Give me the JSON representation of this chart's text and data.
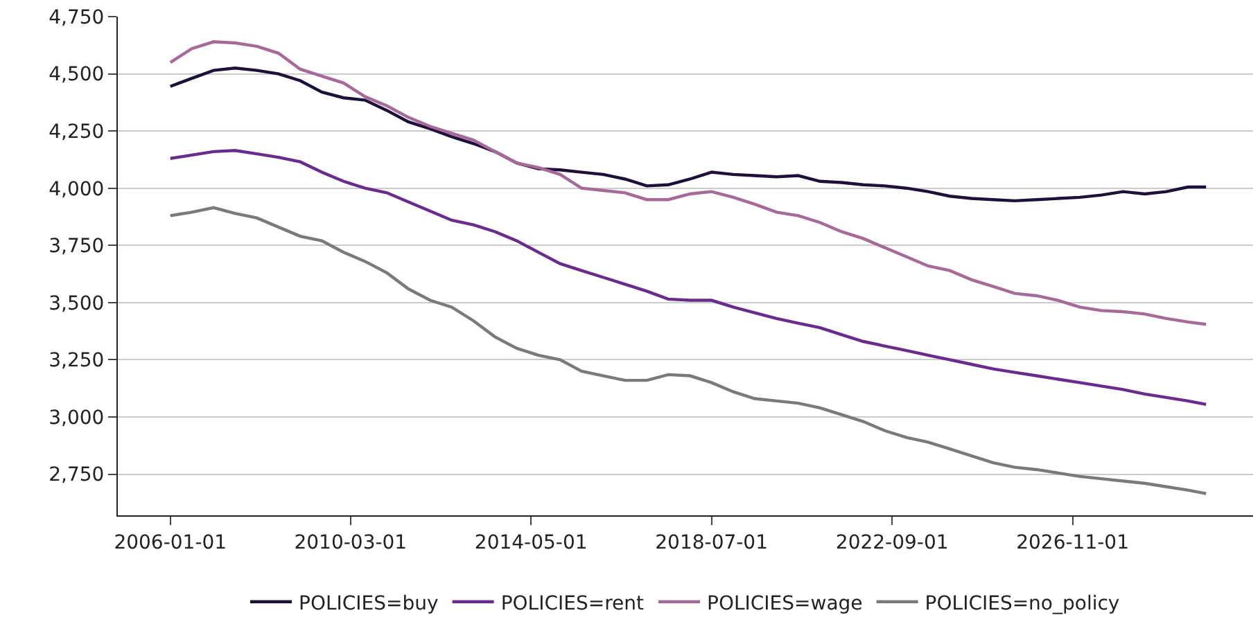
{
  "chart_data": {
    "type": "line",
    "x": [
      "2006-01",
      "2006-07",
      "2007-01",
      "2007-07",
      "2008-01",
      "2008-07",
      "2009-01",
      "2009-07",
      "2010-01",
      "2010-07",
      "2011-01",
      "2011-07",
      "2012-01",
      "2012-07",
      "2013-01",
      "2013-07",
      "2014-01",
      "2014-07",
      "2015-01",
      "2015-07",
      "2016-01",
      "2016-07",
      "2017-01",
      "2017-07",
      "2018-01",
      "2018-07",
      "2019-01",
      "2019-07",
      "2020-01",
      "2020-07",
      "2021-01",
      "2021-07",
      "2022-01",
      "2022-07",
      "2023-01",
      "2023-07",
      "2024-01",
      "2024-07",
      "2025-01",
      "2025-07",
      "2026-01",
      "2026-07",
      "2027-01",
      "2027-07",
      "2028-01",
      "2028-07",
      "2029-01",
      "2029-07",
      "2029-12"
    ],
    "series": [
      {
        "name": "POLICIES=buy",
        "color": "#1f0f3d",
        "values": [
          4445,
          4480,
          4515,
          4525,
          4515,
          4500,
          4470,
          4420,
          4395,
          4385,
          4340,
          4290,
          4260,
          4225,
          4195,
          4160,
          4110,
          4085,
          4080,
          4070,
          4060,
          4040,
          4010,
          4015,
          4040,
          4070,
          4060,
          4055,
          4050,
          4055,
          4030,
          4025,
          4015,
          4010,
          4000,
          3985,
          3965,
          3955,
          3950,
          3945,
          3950,
          3955,
          3960,
          3970,
          3985,
          3975,
          3985,
          4005,
          4005
        ]
      },
      {
        "name": "POLICIES=rent",
        "color": "#6a2a90",
        "values": [
          4130,
          4145,
          4160,
          4165,
          4150,
          4135,
          4115,
          4070,
          4030,
          4000,
          3980,
          3940,
          3900,
          3860,
          3840,
          3810,
          3770,
          3720,
          3670,
          3640,
          3610,
          3580,
          3550,
          3515,
          3510,
          3510,
          3480,
          3455,
          3430,
          3410,
          3390,
          3360,
          3330,
          3310,
          3290,
          3270,
          3250,
          3230,
          3210,
          3195,
          3180,
          3165,
          3150,
          3135,
          3120,
          3100,
          3085,
          3070,
          3055
        ]
      },
      {
        "name": "POLICIES=wage",
        "color": "#a8689a",
        "values": [
          4550,
          4610,
          4640,
          4635,
          4620,
          4590,
          4520,
          4490,
          4460,
          4400,
          4360,
          4310,
          4270,
          4240,
          4210,
          4160,
          4110,
          4090,
          4060,
          4000,
          3990,
          3980,
          3950,
          3950,
          3975,
          3985,
          3960,
          3930,
          3895,
          3880,
          3850,
          3810,
          3780,
          3740,
          3700,
          3660,
          3640,
          3600,
          3570,
          3540,
          3530,
          3510,
          3480,
          3465,
          3460,
          3450,
          3430,
          3415,
          3405
        ]
      },
      {
        "name": "POLICIES=no_policy",
        "color": "#7a7a7a",
        "values": [
          3880,
          3895,
          3915,
          3890,
          3870,
          3830,
          3790,
          3770,
          3720,
          3680,
          3630,
          3560,
          3510,
          3480,
          3420,
          3350,
          3300,
          3270,
          3250,
          3200,
          3180,
          3160,
          3160,
          3185,
          3180,
          3150,
          3110,
          3080,
          3070,
          3060,
          3040,
          3010,
          2980,
          2940,
          2910,
          2890,
          2860,
          2830,
          2800,
          2780,
          2770,
          2755,
          2740,
          2730,
          2720,
          2710,
          2695,
          2680,
          2665
        ]
      }
    ],
    "xlim": [
      "2004-10-15",
      "2031-01-01"
    ],
    "xticks": [
      {
        "value": "2006-01-01",
        "label": "2006-01-01"
      },
      {
        "value": "2010-03-01",
        "label": "2010-03-01"
      },
      {
        "value": "2014-05-01",
        "label": "2014-05-01"
      },
      {
        "value": "2018-07-01",
        "label": "2018-07-01"
      },
      {
        "value": "2022-09-01",
        "label": "2022-09-01"
      },
      {
        "value": "2026-11-01",
        "label": "2026-11-01"
      }
    ],
    "ylim": [
      2570,
      4750
    ],
    "yticks": [
      {
        "value": 2750,
        "label": "2,750"
      },
      {
        "value": 3000,
        "label": "3,000"
      },
      {
        "value": 3250,
        "label": "3,250"
      },
      {
        "value": 3500,
        "label": "3,500"
      },
      {
        "value": 3750,
        "label": "3,750"
      },
      {
        "value": 4000,
        "label": "4,000"
      },
      {
        "value": 4250,
        "label": "4,250"
      },
      {
        "value": 4500,
        "label": "4,500"
      },
      {
        "value": 4750,
        "label": "4,750"
      }
    ],
    "grid": "y",
    "legend": "bottom",
    "marker": "none",
    "line_style": "solid"
  }
}
